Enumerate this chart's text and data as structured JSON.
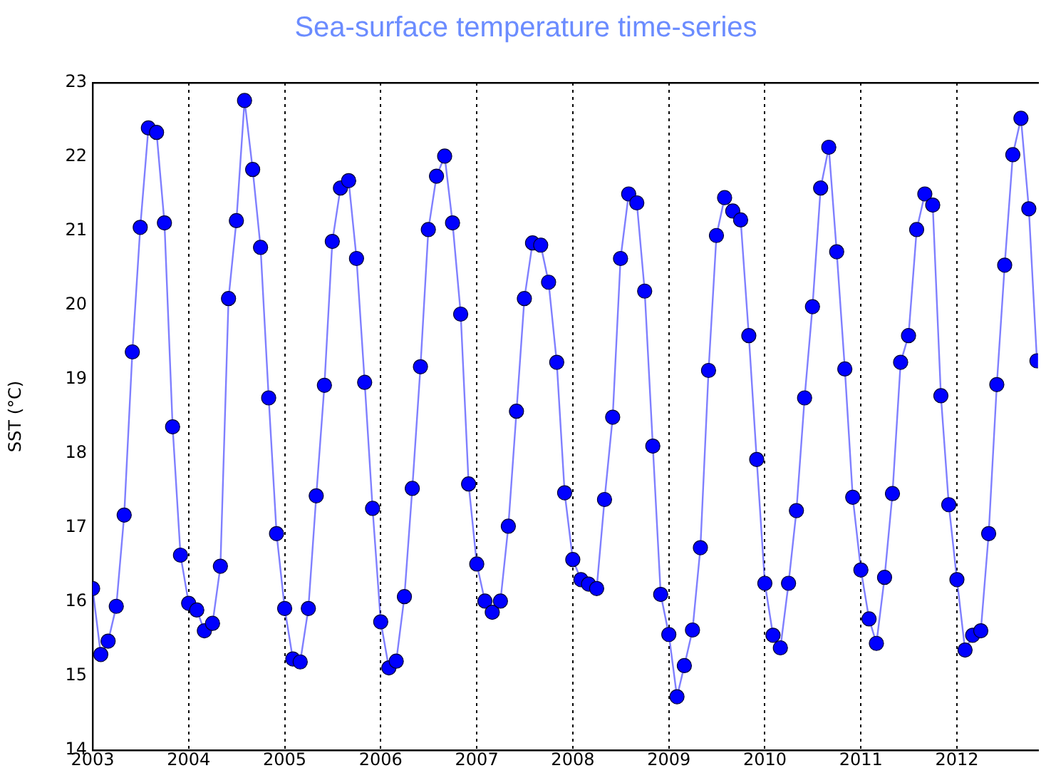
{
  "chart_data": {
    "type": "line",
    "title": "Sea-surface temperature time-series",
    "ylabel": "SST (°C)",
    "x": [
      "2003-01",
      "2003-02",
      "2003-03",
      "2003-04",
      "2003-05",
      "2003-06",
      "2003-07",
      "2003-08",
      "2003-09",
      "2003-10",
      "2003-11",
      "2003-12",
      "2004-01",
      "2004-02",
      "2004-03",
      "2004-04",
      "2004-05",
      "2004-06",
      "2004-07",
      "2004-08",
      "2004-09",
      "2004-10",
      "2004-11",
      "2004-12",
      "2005-01",
      "2005-02",
      "2005-03",
      "2005-04",
      "2005-05",
      "2005-06",
      "2005-07",
      "2005-08",
      "2005-09",
      "2005-10",
      "2005-11",
      "2005-12",
      "2006-01",
      "2006-02",
      "2006-03",
      "2006-04",
      "2006-05",
      "2006-06",
      "2006-07",
      "2006-08",
      "2006-09",
      "2006-10",
      "2006-11",
      "2006-12",
      "2007-01",
      "2007-02",
      "2007-03",
      "2007-04",
      "2007-05",
      "2007-06",
      "2007-07",
      "2007-08",
      "2007-09",
      "2007-10",
      "2007-11",
      "2007-12",
      "2008-01",
      "2008-02",
      "2008-03",
      "2008-04",
      "2008-05",
      "2008-06",
      "2008-07",
      "2008-08",
      "2008-09",
      "2008-10",
      "2008-11",
      "2008-12",
      "2009-01",
      "2009-02",
      "2009-03",
      "2009-04",
      "2009-05",
      "2009-06",
      "2009-07",
      "2009-08",
      "2009-09",
      "2009-10",
      "2009-11",
      "2009-12",
      "2010-01",
      "2010-02",
      "2010-03",
      "2010-04",
      "2010-05",
      "2010-06",
      "2010-07",
      "2010-08",
      "2010-09",
      "2010-10",
      "2010-11",
      "2010-12",
      "2011-01",
      "2011-02",
      "2011-03",
      "2011-04",
      "2011-05",
      "2011-06",
      "2011-07",
      "2011-08",
      "2011-09",
      "2011-10",
      "2011-11",
      "2011-12",
      "2012-01",
      "2012-02",
      "2012-03",
      "2012-04",
      "2012-05",
      "2012-06",
      "2012-07",
      "2012-08",
      "2012-09",
      "2012-10",
      "2012-11"
    ],
    "series": [
      {
        "color": "#0000ff",
        "values": [
          16.18,
          15.29,
          15.47,
          15.94,
          17.17,
          19.37,
          21.05,
          22.39,
          22.33,
          21.11,
          18.36,
          16.63,
          15.98,
          15.89,
          15.61,
          15.71,
          16.48,
          20.09,
          21.14,
          22.76,
          21.83,
          20.78,
          18.75,
          16.92,
          15.91,
          15.23,
          15.19,
          15.91,
          17.43,
          18.92,
          20.86,
          21.58,
          21.68,
          20.63,
          18.96,
          17.26,
          15.73,
          15.11,
          15.2,
          16.07,
          17.53,
          19.17,
          21.02,
          21.74,
          22.01,
          21.11,
          19.88,
          17.59,
          16.51,
          16.01,
          15.86,
          16.01,
          17.02,
          18.57,
          20.09,
          20.84,
          20.81,
          20.31,
          19.23,
          17.47,
          16.57,
          16.3,
          16.24,
          16.18,
          17.38,
          18.49,
          20.63,
          21.5,
          21.38,
          20.19,
          18.1,
          16.1,
          15.56,
          14.72,
          15.14,
          15.62,
          16.73,
          19.12,
          20.94,
          21.45,
          21.27,
          21.15,
          19.59,
          17.92,
          16.25,
          15.55,
          15.38,
          16.25,
          17.23,
          18.75,
          19.98,
          21.58,
          22.13,
          20.72,
          19.14,
          17.41,
          16.43,
          15.77,
          15.44,
          16.33,
          17.46,
          19.23,
          19.59,
          21.02,
          21.5,
          21.35,
          18.78,
          17.31,
          16.3,
          15.35,
          15.55,
          15.61,
          16.92,
          18.93,
          20.54,
          22.03,
          22.52,
          21.3,
          19.25
        ]
      }
    ],
    "xlim": [
      "2003-01",
      "2012-11-05"
    ],
    "ylim": [
      14,
      23
    ],
    "xticks": [
      "2003",
      "2004",
      "2005",
      "2006",
      "2007",
      "2008",
      "2009",
      "2010",
      "2011",
      "2012"
    ],
    "yticks": [
      14,
      15,
      16,
      17,
      18,
      19,
      20,
      21,
      22,
      23
    ],
    "grid": "x",
    "marker": "circle",
    "line_style": "solid"
  }
}
